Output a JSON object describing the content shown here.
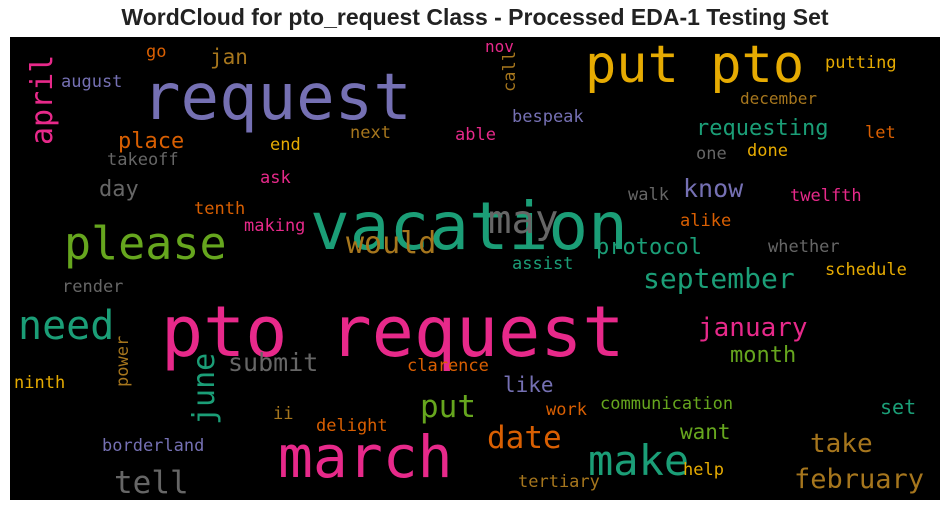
{
  "chart_data": {
    "type": "wordcloud",
    "title": "WordCloud for pto_request Class - Processed EDA-1 Testing Set",
    "background": "#000000",
    "palette": {
      "pink": "#e7298a",
      "purple": "#7570b3",
      "green": "#1b9e77",
      "orange": "#d95f02",
      "gold": "#e6ab02",
      "olive": "#66a61e",
      "brown": "#a6761d",
      "gray": "#666666"
    },
    "words": [
      {
        "text": "pto request",
        "color": "pink",
        "orientation": "horizontal"
      },
      {
        "text": "vacation",
        "color": "green",
        "orientation": "horizontal"
      },
      {
        "text": "request",
        "color": "purple",
        "orientation": "horizontal"
      },
      {
        "text": "march",
        "color": "pink",
        "orientation": "horizontal"
      },
      {
        "text": "put pto",
        "color": "gold",
        "orientation": "horizontal"
      },
      {
        "text": "please",
        "color": "olive",
        "orientation": "horizontal"
      },
      {
        "text": "make",
        "color": "green",
        "orientation": "horizontal"
      },
      {
        "text": "may",
        "color": "gray",
        "orientation": "horizontal"
      },
      {
        "text": "need",
        "color": "green",
        "orientation": "horizontal"
      },
      {
        "text": "april",
        "color": "pink",
        "orientation": "vertical"
      },
      {
        "text": "june",
        "color": "green",
        "orientation": "vertical"
      },
      {
        "text": "date",
        "color": "orange",
        "orientation": "horizontal"
      },
      {
        "text": "put",
        "color": "olive",
        "orientation": "horizontal"
      },
      {
        "text": "tell",
        "color": "gray",
        "orientation": "horizontal"
      },
      {
        "text": "would",
        "color": "brown",
        "orientation": "horizontal"
      },
      {
        "text": "september",
        "color": "green",
        "orientation": "horizontal"
      },
      {
        "text": "february",
        "color": "brown",
        "orientation": "horizontal"
      },
      {
        "text": "take",
        "color": "brown",
        "orientation": "horizontal"
      },
      {
        "text": "january",
        "color": "pink",
        "orientation": "horizontal"
      },
      {
        "text": "submit",
        "color": "gray",
        "orientation": "horizontal"
      },
      {
        "text": "know",
        "color": "purple",
        "orientation": "horizontal"
      },
      {
        "text": "requesting",
        "color": "green",
        "orientation": "horizontal"
      },
      {
        "text": "protocol",
        "color": "green",
        "orientation": "horizontal"
      },
      {
        "text": "month",
        "color": "olive",
        "orientation": "horizontal"
      },
      {
        "text": "place",
        "color": "orange",
        "orientation": "horizontal"
      },
      {
        "text": "want",
        "color": "olive",
        "orientation": "horizontal"
      },
      {
        "text": "like",
        "color": "purple",
        "orientation": "horizontal"
      },
      {
        "text": "set",
        "color": "green",
        "orientation": "horizontal"
      },
      {
        "text": "jan",
        "color": "brown",
        "orientation": "horizontal"
      },
      {
        "text": "day",
        "color": "gray",
        "orientation": "horizontal"
      },
      {
        "text": "bespeak",
        "color": "purple",
        "orientation": "horizontal"
      },
      {
        "text": "putting",
        "color": "gold",
        "orientation": "horizontal"
      },
      {
        "text": "december",
        "color": "brown",
        "orientation": "horizontal"
      },
      {
        "text": "twelfth",
        "color": "pink",
        "orientation": "horizontal"
      },
      {
        "text": "schedule",
        "color": "gold",
        "orientation": "horizontal"
      },
      {
        "text": "communication",
        "color": "olive",
        "orientation": "horizontal"
      },
      {
        "text": "borderland",
        "color": "purple",
        "orientation": "horizontal"
      },
      {
        "text": "clarence",
        "color": "orange",
        "orientation": "horizontal"
      },
      {
        "text": "delight",
        "color": "orange",
        "orientation": "horizontal"
      },
      {
        "text": "tertiary",
        "color": "brown",
        "orientation": "horizontal"
      },
      {
        "text": "whether",
        "color": "gray",
        "orientation": "horizontal"
      },
      {
        "text": "render",
        "color": "gray",
        "orientation": "horizontal"
      },
      {
        "text": "assist",
        "color": "green",
        "orientation": "horizontal"
      },
      {
        "text": "walk",
        "color": "gray",
        "orientation": "horizontal"
      },
      {
        "text": "alike",
        "color": "orange",
        "orientation": "horizontal"
      },
      {
        "text": "making",
        "color": "pink",
        "orientation": "horizontal"
      },
      {
        "text": "tenth",
        "color": "orange",
        "orientation": "horizontal"
      },
      {
        "text": "ask",
        "color": "pink",
        "orientation": "horizontal"
      },
      {
        "text": "takeoff",
        "color": "gray",
        "orientation": "horizontal"
      },
      {
        "text": "end",
        "color": "gold",
        "orientation": "horizontal"
      },
      {
        "text": "next",
        "color": "brown",
        "orientation": "horizontal"
      },
      {
        "text": "able",
        "color": "pink",
        "orientation": "horizontal"
      },
      {
        "text": "august",
        "color": "purple",
        "orientation": "horizontal"
      },
      {
        "text": "go",
        "color": "orange",
        "orientation": "horizontal"
      },
      {
        "text": "nov",
        "color": "pink",
        "orientation": "horizontal"
      },
      {
        "text": "call",
        "color": "brown",
        "orientation": "vertical"
      },
      {
        "text": "one",
        "color": "gray",
        "orientation": "horizontal"
      },
      {
        "text": "done",
        "color": "gold",
        "orientation": "horizontal"
      },
      {
        "text": "let",
        "color": "orange",
        "orientation": "horizontal"
      },
      {
        "text": "ninth",
        "color": "gold",
        "orientation": "horizontal"
      },
      {
        "text": "power",
        "color": "brown",
        "orientation": "vertical"
      },
      {
        "text": "ii",
        "color": "brown",
        "orientation": "horizontal"
      },
      {
        "text": "work",
        "color": "orange",
        "orientation": "horizontal"
      },
      {
        "text": "help",
        "color": "gold",
        "orientation": "horizontal"
      }
    ]
  }
}
